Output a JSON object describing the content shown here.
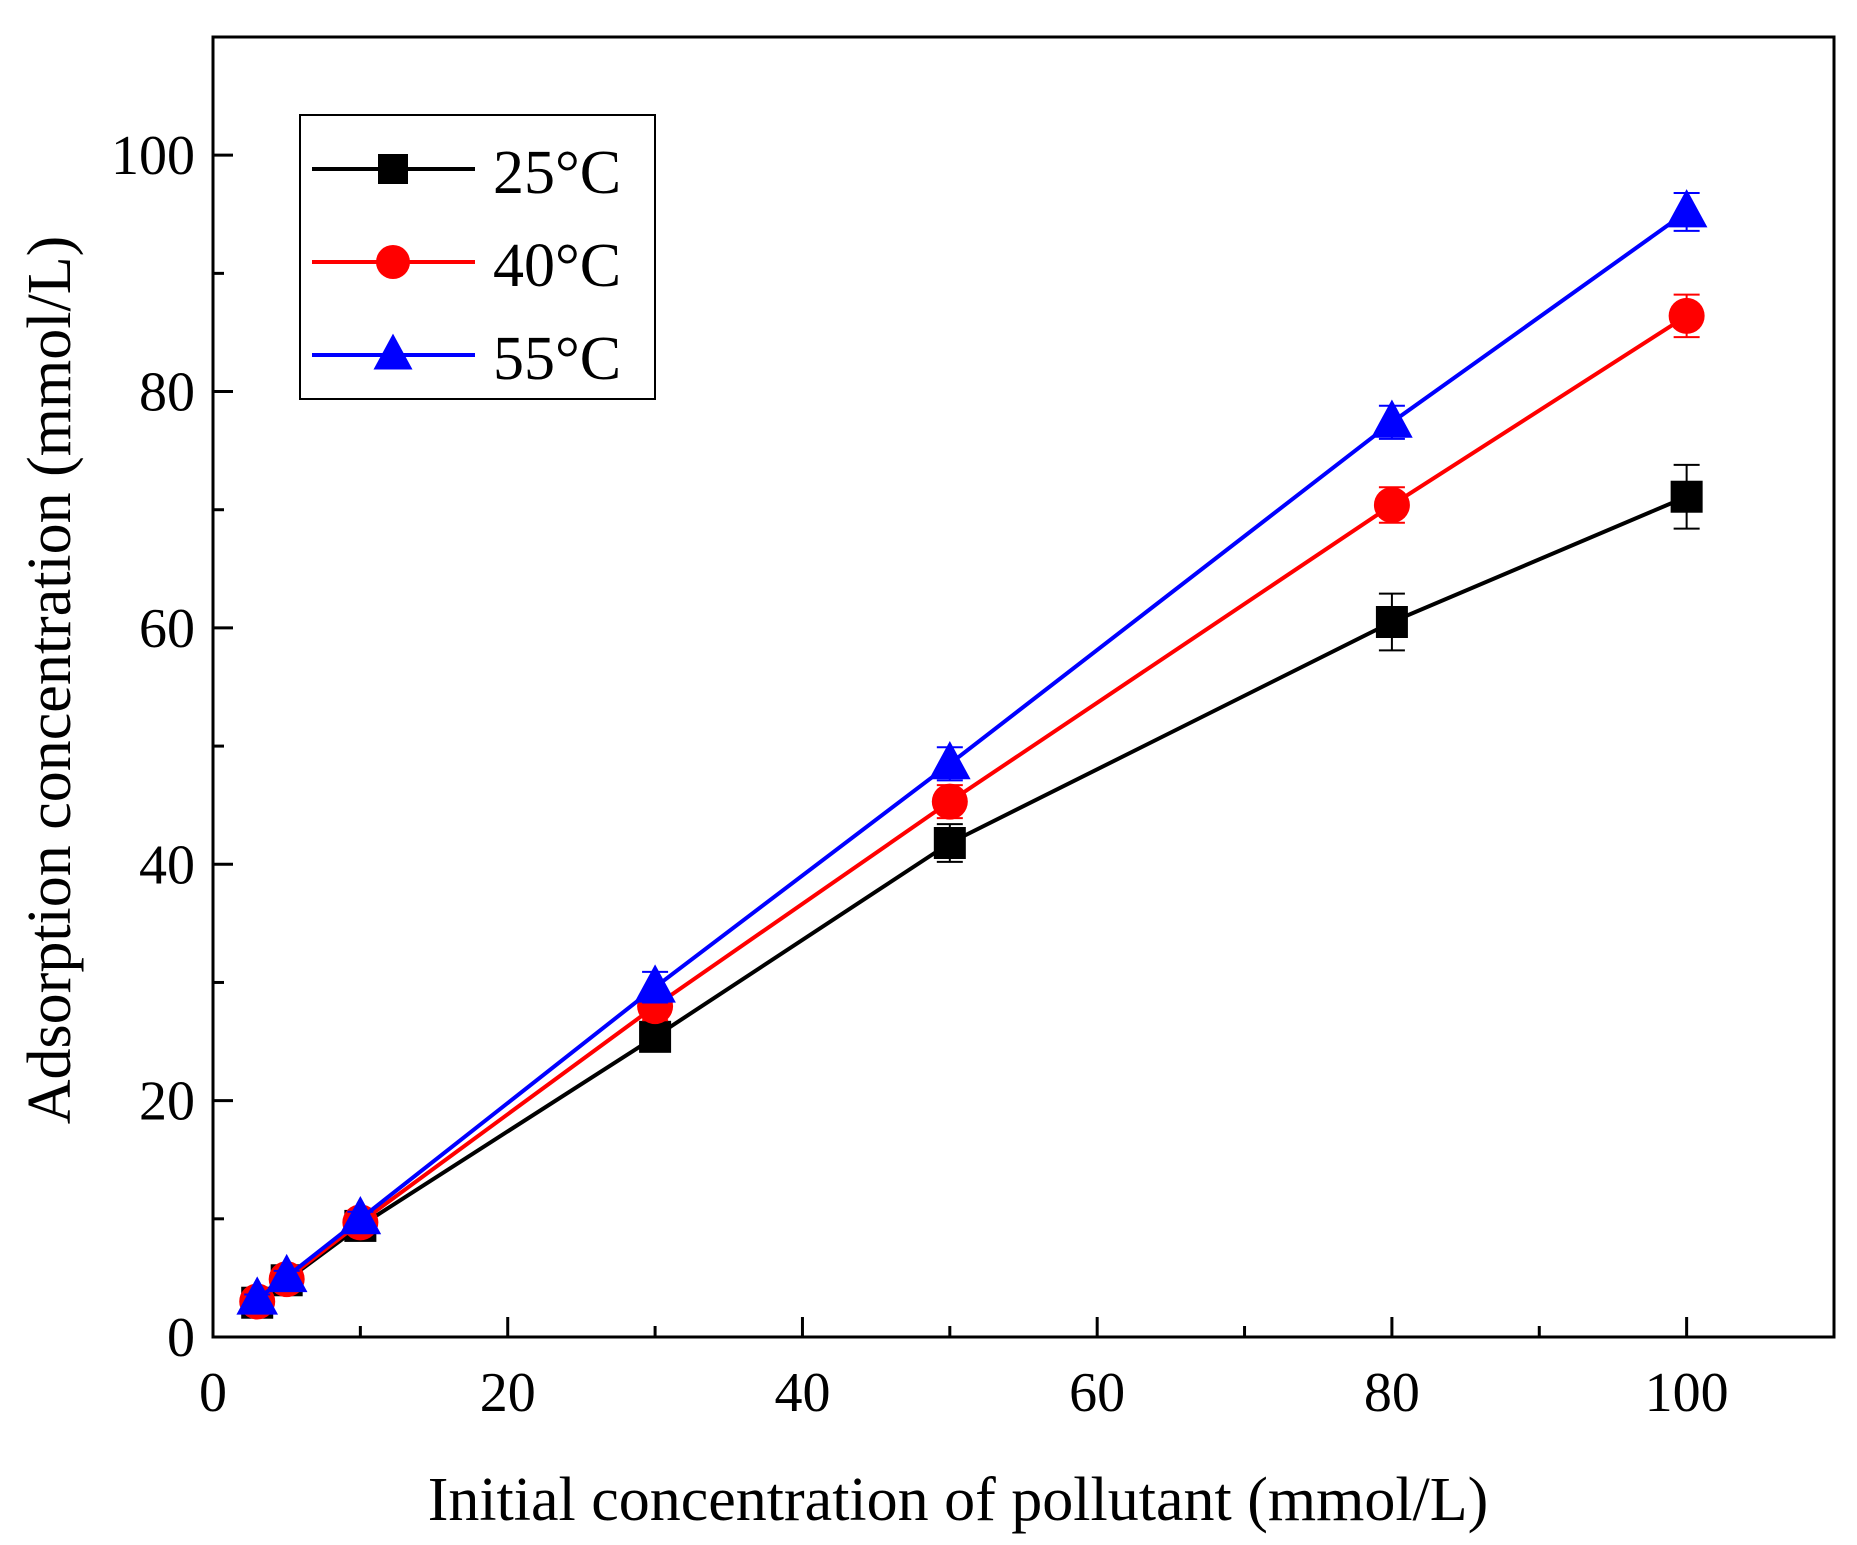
{
  "chart_data": {
    "type": "line",
    "title": "",
    "xlabel": "Initial concentration of pollutant (mmol/L)",
    "ylabel": "Adsorption concentration (mmol/L)",
    "xlim": [
      0,
      110
    ],
    "ylim": [
      0,
      110
    ],
    "xticks": [
      0,
      20,
      40,
      60,
      80,
      100
    ],
    "yticks": [
      0,
      20,
      40,
      60,
      80,
      100
    ],
    "xtick_labels": [
      "0",
      "20",
      "40",
      "60",
      "80",
      "100"
    ],
    "ytick_labels": [
      "0",
      "20",
      "40",
      "60",
      "80",
      "100"
    ],
    "x_minor_ticks": [
      10,
      30,
      50,
      70,
      90
    ],
    "y_minor_ticks": [
      10,
      30,
      50,
      70,
      90
    ],
    "grid": false,
    "legend_position": "top-left",
    "x": [
      3,
      5,
      10,
      30,
      50,
      80,
      100
    ],
    "series": [
      {
        "name": "25°C",
        "color": "#000000",
        "marker": "square",
        "values": [
          2.9,
          4.8,
          9.4,
          25.4,
          41.8,
          60.5,
          71.1
        ],
        "errors": [
          0.5,
          0.6,
          0.6,
          1.2,
          1.6,
          2.4,
          2.7
        ]
      },
      {
        "name": "40°C",
        "color": "#ff0000",
        "marker": "circle",
        "values": [
          3.0,
          4.9,
          9.7,
          28.0,
          45.3,
          70.4,
          86.4
        ],
        "errors": [
          0.4,
          0.5,
          0.5,
          1.2,
          1.4,
          1.5,
          1.8
        ]
      },
      {
        "name": "55°C",
        "color": "#0000ff",
        "marker": "triangle",
        "values": [
          3.2,
          5.1,
          10.0,
          29.6,
          48.5,
          77.4,
          95.2
        ],
        "errors": [
          0.4,
          0.5,
          0.6,
          1.3,
          1.4,
          1.4,
          1.6
        ]
      }
    ]
  }
}
